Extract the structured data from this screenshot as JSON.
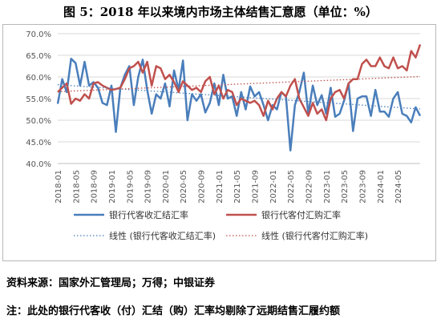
{
  "header": {
    "title": "图 5：2018 年以来境内市场主体结售汇意愿（单位：%）"
  },
  "footer": {
    "source": "资料来源：国家外汇管理局；万得；中银证券",
    "note": "注：此处的银行代客收（付）汇结（购）汇率均剔除了远期结售汇履约额"
  },
  "chart_data": {
    "type": "line",
    "ylim": [
      40,
      70
    ],
    "y_ticks": [
      "40.0%",
      "45.0%",
      "50.0%",
      "55.0%",
      "60.0%",
      "65.0%",
      "70.0%"
    ],
    "y_tick_values": [
      40,
      45,
      50,
      55,
      60,
      65,
      70
    ],
    "x_start": "2018-01",
    "x_end": "2024-07",
    "x_tick_labels": [
      "2018-01",
      "2018-05",
      "2018-09",
      "2019-01",
      "2019-05",
      "2019-09",
      "2020-01",
      "2020-05",
      "2020-09",
      "2021-01",
      "2021-05",
      "2021-09",
      "2022-01",
      "2022-05",
      "2022-09",
      "2023-01",
      "2023-05",
      "2023-09",
      "2024-01",
      "2024-05"
    ],
    "grid": "horizontal",
    "legend_position": "bottom",
    "series": [
      {
        "name": "银行代客收汇结汇率",
        "color": "#4a7ebb",
        "style": "solid",
        "values": [
          53.8,
          59.5,
          56.5,
          64.2,
          63.2,
          58.0,
          63.5,
          58.0,
          58.8,
          57.5,
          54.0,
          53.5,
          58.0,
          47.3,
          57.5,
          60.5,
          62.5,
          53.5,
          60.0,
          64.0,
          57.0,
          51.5,
          56.0,
          55.0,
          58.5,
          53.2,
          61.5,
          57.0,
          63.8,
          50.0,
          56.0,
          54.5,
          56.0,
          51.8,
          54.0,
          58.5,
          53.5,
          60.5,
          55.0,
          55.5,
          51.0,
          56.5,
          52.5,
          57.8,
          55.5,
          56.5,
          53.5,
          50.0,
          53.5,
          52.5,
          56.5,
          55.5,
          43.0,
          53.5,
          56.5,
          61.0,
          51.5,
          58.0,
          53.5,
          55.8,
          51.5,
          57.5,
          50.8,
          51.5,
          54.5,
          58.5,
          47.5,
          55.0,
          55.5,
          55.5,
          51.0,
          57.0,
          52.0,
          52.0,
          50.8,
          55.0,
          56.5,
          51.5,
          51.0,
          49.5,
          53.0,
          51.0
        ]
      },
      {
        "name": "银行代客付汇购汇率",
        "color": "#c0504d",
        "style": "solid",
        "values": [
          56.5,
          57.5,
          58.5,
          53.8,
          55.0,
          54.5,
          56.0,
          55.0,
          58.5,
          58.8,
          58.0,
          57.5,
          57.0,
          57.2,
          57.5,
          59.5,
          62.0,
          62.5,
          63.5,
          61.0,
          63.5,
          58.0,
          62.5,
          62.0,
          59.5,
          60.5,
          58.8,
          56.5,
          59.0,
          58.0,
          57.0,
          57.5,
          56.5,
          59.0,
          60.0,
          56.0,
          58.0,
          55.0,
          57.0,
          56.5,
          53.5,
          55.0,
          54.5,
          54.0,
          54.5,
          53.5,
          51.0,
          54.5,
          52.5,
          55.0,
          56.5,
          55.5,
          58.0,
          59.5,
          55.0,
          53.0,
          51.0,
          54.0,
          51.5,
          52.5,
          50.0,
          55.0,
          56.5,
          57.0,
          55.0,
          58.5,
          59.5,
          59.5,
          63.0,
          64.0,
          62.5,
          62.5,
          64.5,
          62.5,
          62.0,
          64.5,
          62.0,
          62.5,
          61.5,
          66.0,
          64.5,
          67.5
        ]
      },
      {
        "name": "线性 (银行代客收汇结汇率)",
        "color": "#4a7ebb",
        "style": "dotted",
        "values": [
          58.2,
          52.6
        ]
      },
      {
        "name": "线性 (银行代客付汇购汇率)",
        "color": "#c0504d",
        "style": "dotted",
        "values": [
          56.6,
          60.1
        ]
      }
    ]
  }
}
